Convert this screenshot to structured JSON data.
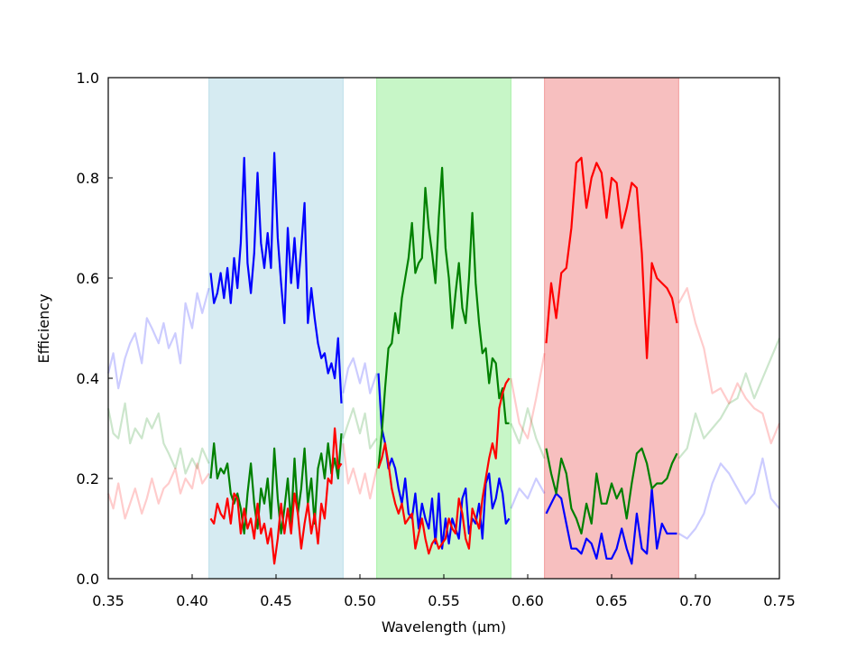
{
  "chart_data": {
    "type": "line",
    "title": "",
    "xlabel": "Wavelength (μm)",
    "ylabel": "Efficiency",
    "xlim": [
      0.35,
      0.75
    ],
    "ylim": [
      0.0,
      1.0
    ],
    "grid": false,
    "legend": "none",
    "x_ticks": [
      "0.35",
      "0.40",
      "0.45",
      "0.50",
      "0.55",
      "0.60",
      "0.65",
      "0.70",
      "0.75"
    ],
    "y_ticks": [
      "0.0",
      "0.2",
      "0.4",
      "0.6",
      "0.8",
      "1.0"
    ],
    "bands": [
      {
        "range": [
          0.41,
          0.49
        ],
        "color": "#add8e6"
      },
      {
        "range": [
          0.51,
          0.59
        ],
        "color": "#90ee90"
      },
      {
        "range": [
          0.61,
          0.69
        ],
        "color": "#f08080"
      }
    ],
    "series": [
      {
        "color": "#0000ff",
        "faded": true,
        "x": [
          0.35,
          0.353,
          0.356,
          0.36,
          0.363,
          0.366,
          0.37,
          0.373,
          0.376,
          0.38,
          0.383,
          0.386,
          0.39,
          0.393,
          0.396,
          0.4,
          0.403,
          0.406,
          0.41
        ],
        "y": [
          0.41,
          0.45,
          0.38,
          0.44,
          0.47,
          0.49,
          0.43,
          0.52,
          0.5,
          0.47,
          0.51,
          0.46,
          0.49,
          0.43,
          0.55,
          0.5,
          0.57,
          0.53,
          0.58
        ]
      },
      {
        "color": "#0000ff",
        "faded": true,
        "x": [
          0.49,
          0.493,
          0.496,
          0.5,
          0.503,
          0.506,
          0.51
        ],
        "y": [
          0.37,
          0.42,
          0.44,
          0.39,
          0.43,
          0.37,
          0.41
        ]
      },
      {
        "color": "#0000ff",
        "faded": true,
        "x": [
          0.59,
          0.595,
          0.6,
          0.605,
          0.61
        ],
        "y": [
          0.14,
          0.18,
          0.16,
          0.2,
          0.17
        ]
      },
      {
        "color": "#0000ff",
        "faded": true,
        "x": [
          0.69,
          0.695,
          0.7,
          0.705,
          0.71,
          0.715,
          0.72,
          0.725,
          0.73,
          0.735,
          0.74,
          0.745,
          0.75
        ],
        "y": [
          0.09,
          0.08,
          0.1,
          0.13,
          0.19,
          0.23,
          0.21,
          0.18,
          0.15,
          0.17,
          0.24,
          0.16,
          0.14
        ]
      },
      {
        "color": "#008000",
        "faded": true,
        "x": [
          0.35,
          0.353,
          0.356,
          0.36,
          0.363,
          0.366,
          0.37,
          0.373,
          0.376,
          0.38,
          0.383,
          0.386,
          0.39,
          0.393,
          0.396,
          0.4,
          0.403,
          0.406,
          0.41
        ],
        "y": [
          0.34,
          0.29,
          0.28,
          0.35,
          0.27,
          0.3,
          0.28,
          0.32,
          0.3,
          0.33,
          0.27,
          0.25,
          0.22,
          0.26,
          0.21,
          0.24,
          0.22,
          0.26,
          0.23
        ]
      },
      {
        "color": "#008000",
        "faded": true,
        "x": [
          0.49,
          0.493,
          0.496,
          0.5,
          0.503,
          0.506,
          0.51
        ],
        "y": [
          0.28,
          0.31,
          0.34,
          0.29,
          0.33,
          0.26,
          0.28
        ]
      },
      {
        "color": "#008000",
        "faded": true,
        "x": [
          0.59,
          0.595,
          0.6,
          0.605,
          0.61
        ],
        "y": [
          0.31,
          0.27,
          0.34,
          0.28,
          0.24
        ]
      },
      {
        "color": "#008000",
        "faded": true,
        "x": [
          0.69,
          0.695,
          0.7,
          0.705,
          0.71,
          0.715,
          0.72,
          0.725,
          0.73,
          0.735,
          0.74,
          0.745,
          0.75
        ],
        "y": [
          0.24,
          0.26,
          0.33,
          0.28,
          0.3,
          0.32,
          0.35,
          0.36,
          0.41,
          0.36,
          0.4,
          0.44,
          0.48
        ]
      },
      {
        "color": "#ff0000",
        "faded": true,
        "x": [
          0.35,
          0.353,
          0.356,
          0.36,
          0.363,
          0.366,
          0.37,
          0.373,
          0.376,
          0.38,
          0.383,
          0.386,
          0.39,
          0.393,
          0.396,
          0.4,
          0.403,
          0.406,
          0.41
        ],
        "y": [
          0.17,
          0.14,
          0.19,
          0.12,
          0.15,
          0.18,
          0.13,
          0.16,
          0.2,
          0.15,
          0.18,
          0.19,
          0.22,
          0.17,
          0.2,
          0.18,
          0.23,
          0.19,
          0.21
        ]
      },
      {
        "color": "#ff0000",
        "faded": true,
        "x": [
          0.49,
          0.493,
          0.496,
          0.5,
          0.503,
          0.506,
          0.51
        ],
        "y": [
          0.27,
          0.19,
          0.22,
          0.17,
          0.21,
          0.16,
          0.22
        ]
      },
      {
        "color": "#ff0000",
        "faded": true,
        "x": [
          0.59,
          0.595,
          0.6,
          0.605,
          0.61
        ],
        "y": [
          0.4,
          0.31,
          0.28,
          0.36,
          0.45
        ]
      },
      {
        "color": "#ff0000",
        "faded": true,
        "x": [
          0.69,
          0.695,
          0.7,
          0.705,
          0.71,
          0.715,
          0.72,
          0.725,
          0.73,
          0.735,
          0.74,
          0.745,
          0.75
        ],
        "y": [
          0.55,
          0.58,
          0.51,
          0.46,
          0.37,
          0.38,
          0.35,
          0.39,
          0.36,
          0.34,
          0.33,
          0.27,
          0.31
        ]
      },
      {
        "color": "#0000ff",
        "faded": false,
        "x": [
          0.411,
          0.413,
          0.415,
          0.417,
          0.419,
          0.421,
          0.423,
          0.425,
          0.427,
          0.429,
          0.431,
          0.433,
          0.435,
          0.437,
          0.439,
          0.441,
          0.443,
          0.445,
          0.447,
          0.449,
          0.451,
          0.453,
          0.455,
          0.457,
          0.459,
          0.461,
          0.463,
          0.465,
          0.467,
          0.469,
          0.471,
          0.473,
          0.475,
          0.477,
          0.479,
          0.481,
          0.483,
          0.485,
          0.487,
          0.489
        ],
        "y": [
          0.61,
          0.55,
          0.57,
          0.61,
          0.56,
          0.62,
          0.55,
          0.64,
          0.58,
          0.67,
          0.84,
          0.63,
          0.57,
          0.65,
          0.81,
          0.67,
          0.62,
          0.69,
          0.62,
          0.85,
          0.68,
          0.59,
          0.51,
          0.7,
          0.59,
          0.68,
          0.58,
          0.66,
          0.75,
          0.51,
          0.58,
          0.52,
          0.47,
          0.44,
          0.45,
          0.41,
          0.43,
          0.4,
          0.48,
          0.35
        ]
      },
      {
        "color": "#008000",
        "faded": false,
        "x": [
          0.411,
          0.413,
          0.415,
          0.417,
          0.419,
          0.421,
          0.423,
          0.425,
          0.427,
          0.429,
          0.431,
          0.433,
          0.435,
          0.437,
          0.439,
          0.441,
          0.443,
          0.445,
          0.447,
          0.449,
          0.451,
          0.453,
          0.455,
          0.457,
          0.459,
          0.461,
          0.463,
          0.465,
          0.467,
          0.469,
          0.471,
          0.473,
          0.475,
          0.477,
          0.479,
          0.481,
          0.483,
          0.485,
          0.487,
          0.489
        ],
        "y": [
          0.2,
          0.27,
          0.2,
          0.22,
          0.21,
          0.23,
          0.17,
          0.15,
          0.17,
          0.14,
          0.09,
          0.17,
          0.23,
          0.15,
          0.1,
          0.18,
          0.15,
          0.2,
          0.12,
          0.26,
          0.16,
          0.09,
          0.14,
          0.2,
          0.11,
          0.24,
          0.13,
          0.18,
          0.26,
          0.15,
          0.2,
          0.11,
          0.22,
          0.25,
          0.2,
          0.27,
          0.21,
          0.24,
          0.2,
          0.29
        ]
      },
      {
        "color": "#ff0000",
        "faded": false,
        "x": [
          0.411,
          0.413,
          0.415,
          0.417,
          0.419,
          0.421,
          0.423,
          0.425,
          0.427,
          0.429,
          0.431,
          0.433,
          0.435,
          0.437,
          0.439,
          0.441,
          0.443,
          0.445,
          0.447,
          0.449,
          0.451,
          0.453,
          0.455,
          0.457,
          0.459,
          0.461,
          0.463,
          0.465,
          0.467,
          0.469,
          0.471,
          0.473,
          0.475,
          0.477,
          0.479,
          0.481,
          0.483,
          0.485,
          0.487,
          0.489
        ],
        "y": [
          0.12,
          0.11,
          0.15,
          0.13,
          0.12,
          0.16,
          0.11,
          0.17,
          0.16,
          0.09,
          0.14,
          0.1,
          0.12,
          0.08,
          0.15,
          0.09,
          0.11,
          0.07,
          0.1,
          0.03,
          0.08,
          0.15,
          0.09,
          0.14,
          0.09,
          0.17,
          0.13,
          0.06,
          0.11,
          0.15,
          0.09,
          0.13,
          0.07,
          0.15,
          0.12,
          0.2,
          0.19,
          0.3,
          0.22,
          0.23
        ]
      },
      {
        "color": "#0000ff",
        "faded": false,
        "x": [
          0.511,
          0.513,
          0.515,
          0.517,
          0.519,
          0.521,
          0.523,
          0.525,
          0.527,
          0.529,
          0.531,
          0.533,
          0.535,
          0.537,
          0.539,
          0.541,
          0.543,
          0.545,
          0.547,
          0.549,
          0.551,
          0.553,
          0.555,
          0.557,
          0.559,
          0.561,
          0.563,
          0.565,
          0.567,
          0.569,
          0.571,
          0.573,
          0.575,
          0.577,
          0.579,
          0.581,
          0.583,
          0.585,
          0.587,
          0.589
        ],
        "y": [
          0.41,
          0.3,
          0.27,
          0.22,
          0.24,
          0.22,
          0.18,
          0.15,
          0.2,
          0.13,
          0.12,
          0.17,
          0.1,
          0.15,
          0.12,
          0.1,
          0.16,
          0.07,
          0.17,
          0.06,
          0.12,
          0.07,
          0.12,
          0.1,
          0.08,
          0.16,
          0.18,
          0.09,
          0.12,
          0.11,
          0.15,
          0.08,
          0.19,
          0.21,
          0.14,
          0.16,
          0.2,
          0.17,
          0.11,
          0.12
        ]
      },
      {
        "color": "#008000",
        "faded": false,
        "x": [
          0.511,
          0.513,
          0.515,
          0.517,
          0.519,
          0.521,
          0.523,
          0.525,
          0.527,
          0.529,
          0.531,
          0.533,
          0.535,
          0.537,
          0.539,
          0.541,
          0.543,
          0.545,
          0.547,
          0.549,
          0.551,
          0.553,
          0.555,
          0.557,
          0.559,
          0.561,
          0.563,
          0.565,
          0.567,
          0.569,
          0.571,
          0.573,
          0.575,
          0.577,
          0.579,
          0.581,
          0.583,
          0.585,
          0.587,
          0.589
        ],
        "y": [
          0.22,
          0.29,
          0.38,
          0.46,
          0.47,
          0.53,
          0.49,
          0.56,
          0.6,
          0.64,
          0.71,
          0.61,
          0.63,
          0.64,
          0.78,
          0.7,
          0.65,
          0.59,
          0.72,
          0.82,
          0.66,
          0.6,
          0.5,
          0.57,
          0.63,
          0.54,
          0.51,
          0.6,
          0.73,
          0.59,
          0.51,
          0.45,
          0.46,
          0.39,
          0.44,
          0.43,
          0.36,
          0.38,
          0.31,
          0.31
        ]
      },
      {
        "color": "#ff0000",
        "faded": false,
        "x": [
          0.511,
          0.513,
          0.515,
          0.517,
          0.519,
          0.521,
          0.523,
          0.525,
          0.527,
          0.529,
          0.531,
          0.533,
          0.535,
          0.537,
          0.539,
          0.541,
          0.543,
          0.545,
          0.547,
          0.549,
          0.551,
          0.553,
          0.555,
          0.557,
          0.559,
          0.561,
          0.563,
          0.565,
          0.567,
          0.569,
          0.571,
          0.573,
          0.575,
          0.577,
          0.579,
          0.581,
          0.583,
          0.585,
          0.587,
          0.589
        ],
        "y": [
          0.22,
          0.24,
          0.27,
          0.23,
          0.18,
          0.15,
          0.13,
          0.15,
          0.11,
          0.12,
          0.13,
          0.06,
          0.09,
          0.12,
          0.08,
          0.05,
          0.07,
          0.08,
          0.06,
          0.07,
          0.08,
          0.12,
          0.1,
          0.09,
          0.16,
          0.13,
          0.08,
          0.06,
          0.14,
          0.12,
          0.1,
          0.16,
          0.2,
          0.24,
          0.27,
          0.24,
          0.34,
          0.37,
          0.39,
          0.4
        ]
      },
      {
        "color": "#0000ff",
        "faded": false,
        "x": [
          0.611,
          0.614,
          0.617,
          0.62,
          0.623,
          0.626,
          0.629,
          0.632,
          0.635,
          0.638,
          0.641,
          0.644,
          0.647,
          0.65,
          0.653,
          0.656,
          0.659,
          0.662,
          0.665,
          0.668,
          0.671,
          0.674,
          0.677,
          0.68,
          0.683,
          0.686,
          0.689
        ],
        "y": [
          0.13,
          0.15,
          0.17,
          0.16,
          0.11,
          0.06,
          0.06,
          0.05,
          0.08,
          0.07,
          0.04,
          0.09,
          0.04,
          0.04,
          0.06,
          0.1,
          0.06,
          0.03,
          0.13,
          0.06,
          0.05,
          0.18,
          0.06,
          0.11,
          0.09,
          0.09,
          0.09
        ]
      },
      {
        "color": "#008000",
        "faded": false,
        "x": [
          0.611,
          0.614,
          0.617,
          0.62,
          0.623,
          0.626,
          0.629,
          0.632,
          0.635,
          0.638,
          0.641,
          0.644,
          0.647,
          0.65,
          0.653,
          0.656,
          0.659,
          0.662,
          0.665,
          0.668,
          0.671,
          0.674,
          0.677,
          0.68,
          0.683,
          0.686,
          0.689
        ],
        "y": [
          0.26,
          0.21,
          0.17,
          0.24,
          0.21,
          0.14,
          0.12,
          0.09,
          0.15,
          0.11,
          0.21,
          0.15,
          0.15,
          0.19,
          0.16,
          0.18,
          0.12,
          0.19,
          0.25,
          0.26,
          0.23,
          0.18,
          0.19,
          0.19,
          0.2,
          0.23,
          0.25
        ]
      },
      {
        "color": "#ff0000",
        "faded": false,
        "x": [
          0.611,
          0.614,
          0.617,
          0.62,
          0.623,
          0.626,
          0.629,
          0.632,
          0.635,
          0.638,
          0.641,
          0.644,
          0.647,
          0.65,
          0.653,
          0.656,
          0.659,
          0.662,
          0.665,
          0.668,
          0.671,
          0.674,
          0.677,
          0.68,
          0.683,
          0.686,
          0.689
        ],
        "y": [
          0.47,
          0.59,
          0.52,
          0.61,
          0.62,
          0.7,
          0.83,
          0.84,
          0.74,
          0.8,
          0.83,
          0.81,
          0.72,
          0.8,
          0.79,
          0.7,
          0.74,
          0.79,
          0.78,
          0.65,
          0.44,
          0.63,
          0.6,
          0.59,
          0.58,
          0.56,
          0.51
        ]
      }
    ]
  }
}
